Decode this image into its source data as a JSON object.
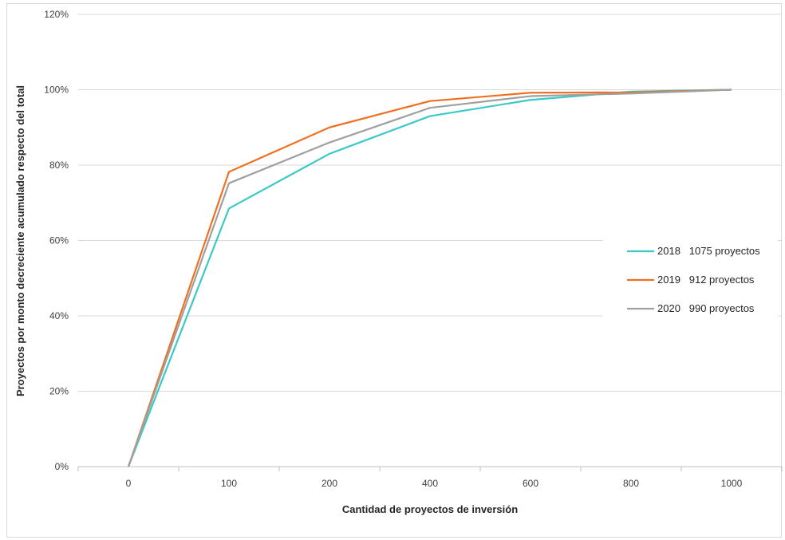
{
  "chart_data": {
    "type": "line",
    "title": "",
    "xlabel": "Cantidad de proyectos de inversión",
    "ylabel": "Proyectos por monto decreciente acumulado respecto del total",
    "categories": [
      "0",
      "100",
      "200",
      "400",
      "600",
      "800",
      "1000"
    ],
    "ylim": [
      0,
      120
    ],
    "yticks": [
      "0%",
      "20%",
      "40%",
      "60%",
      "80%",
      "100%",
      "120%"
    ],
    "ytick_values": [
      0,
      20,
      40,
      60,
      80,
      100,
      120
    ],
    "grid": true,
    "legend_position": "right",
    "series": [
      {
        "name": "2018   1075 proyectos",
        "color": "#3CC8C8",
        "values": [
          0,
          68.5,
          83,
          93,
          97.3,
          99.5,
          100
        ]
      },
      {
        "name": "2019   912 proyectos",
        "color": "#F07021",
        "values": [
          0,
          78.2,
          90,
          97,
          99.2,
          99.3,
          100
        ]
      },
      {
        "name": "2020   990 proyectos",
        "color": "#A0A0A0",
        "values": [
          0,
          75.2,
          86,
          95.2,
          98.3,
          99,
          100
        ]
      }
    ]
  }
}
